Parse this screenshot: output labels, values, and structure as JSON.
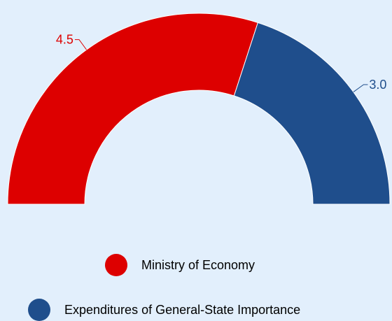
{
  "chart_data": {
    "type": "pie",
    "subtype": "semi-donut",
    "title": "",
    "slices": [
      {
        "name": "Ministry of Economy",
        "value": 4.5,
        "label": "4.5",
        "color": "#dd0000"
      },
      {
        "name": "Expenditures of General-State Importance",
        "value": 3.0,
        "label": "3.0",
        "color": "#1f4e8c"
      }
    ],
    "legend": {
      "position": "bottom"
    }
  },
  "legend_items": [
    {
      "label": "Ministry of Economy",
      "color": "#dd0000"
    },
    {
      "label": "Expenditures of General-State Importance",
      "color": "#1f4e8c"
    }
  ],
  "colors": {
    "background": "#e2effc",
    "label_line": "#1f4e8c"
  }
}
